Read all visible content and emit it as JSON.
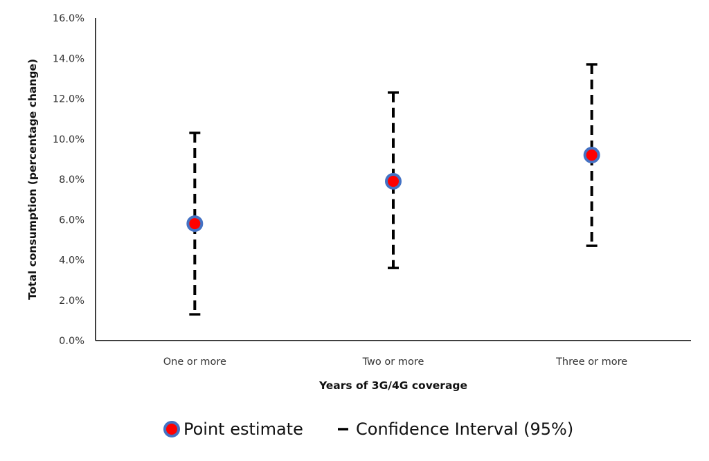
{
  "chart_data": {
    "type": "scatter",
    "title": "",
    "xlabel": "Years of 3G/4G coverage",
    "ylabel": "Total consumption (percentage change)",
    "categories": [
      "One or more",
      "Two or more",
      "Three or more"
    ],
    "ylim": [
      0,
      16
    ],
    "yticks": [
      "0.0%",
      "2.0%",
      "4.0%",
      "6.0%",
      "8.0%",
      "10.0%",
      "12.0%",
      "14.0%",
      "16.0%"
    ],
    "grid": false,
    "legend_position": "bottom",
    "series": [
      {
        "name": "Point estimate",
        "values": [
          5.8,
          7.9,
          9.2
        ]
      },
      {
        "name": "Confidence Interval (95%)",
        "lower": [
          1.3,
          3.6,
          4.7
        ],
        "upper": [
          10.3,
          12.3,
          13.7
        ]
      }
    ],
    "colors": {
      "point_fill": "#ff0000",
      "point_stroke": "#4472c4",
      "interval": "#000000",
      "axis": "#000000"
    }
  }
}
